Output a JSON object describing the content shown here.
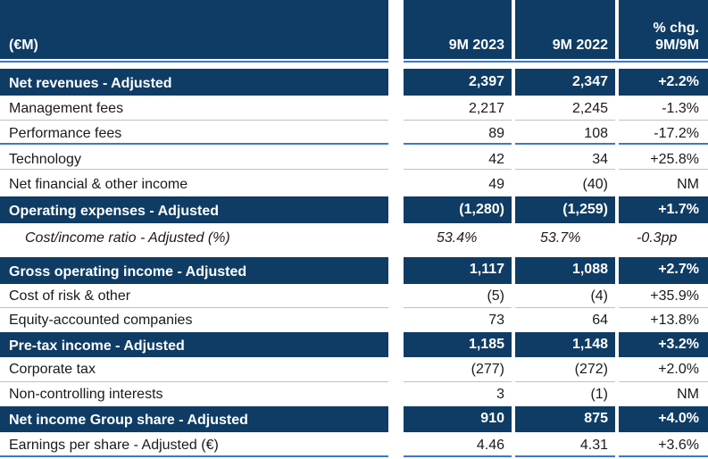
{
  "header": {
    "label": "(€M)",
    "col1": "9M 2023",
    "col2": "9M 2022",
    "col3_line1": "% chg.",
    "col3_line2": "9M/9M"
  },
  "rows": [
    {
      "label": "Net revenues - Adjusted",
      "v1": "2,397",
      "v2": "2,347",
      "v3": "+2.2%"
    },
    {
      "label": "Management fees",
      "v1": "2,217",
      "v2": "2,245",
      "v3": "-1.3%"
    },
    {
      "label": "Performance fees",
      "v1": "89",
      "v2": "108",
      "v3": "-17.2%"
    },
    {
      "label": "Technology",
      "v1": "42",
      "v2": "34",
      "v3": "+25.8%"
    },
    {
      "label": "Net financial & other income",
      "v1": "49",
      "v2": "(40)",
      "v3": "NM"
    },
    {
      "label": "Operating expenses - Adjusted",
      "v1": "(1,280)",
      "v2": "(1,259)",
      "v3": "+1.7%"
    },
    {
      "label": "Cost/income ratio - Adjusted (%)",
      "v1": "53.4%",
      "v2": "53.7%",
      "v3": "-0.3pp"
    },
    {
      "label": "Gross operating income - Adjusted",
      "v1": "1,117",
      "v2": "1,088",
      "v3": "+2.7%"
    },
    {
      "label": "Cost of risk & other",
      "v1": "(5)",
      "v2": "(4)",
      "v3": "+35.9%"
    },
    {
      "label": "Equity-accounted companies",
      "v1": "73",
      "v2": "64",
      "v3": "+13.8%"
    },
    {
      "label": "Pre-tax income - Adjusted",
      "v1": "1,185",
      "v2": "1,148",
      "v3": "+3.2%"
    },
    {
      "label": "Corporate tax",
      "v1": "(277)",
      "v2": "(272)",
      "v3": "+2.0%"
    },
    {
      "label": "Non-controlling interests",
      "v1": "3",
      "v2": "(1)",
      "v3": "NM"
    },
    {
      "label": "Net income Group share - Adjusted",
      "v1": "910",
      "v2": "875",
      "v3": "+4.0%"
    },
    {
      "label": "Earnings per share - Adjusted (€)",
      "v1": "4.46",
      "v2": "4.31",
      "v3": "+3.6%"
    }
  ],
  "colors": {
    "band": "#0f3c64",
    "accent_line": "#3a78c9",
    "divider": "#b9c3cc"
  }
}
